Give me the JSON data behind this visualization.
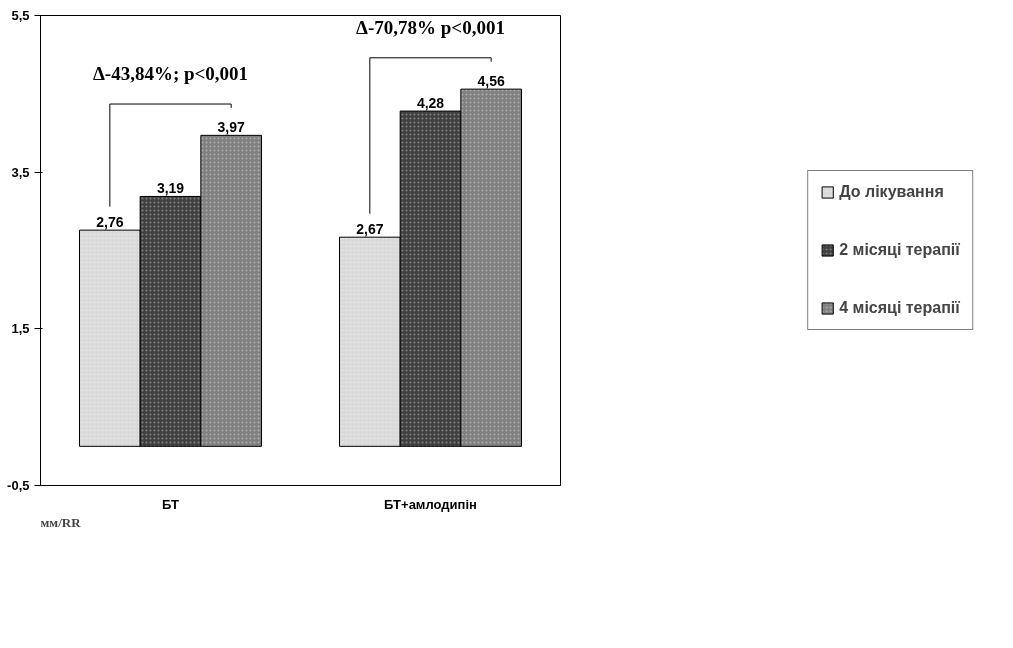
{
  "chart_data": {
    "type": "bar",
    "categories": [
      "БТ",
      "БТ+амлодипін"
    ],
    "series": [
      {
        "name": "До лікування",
        "color": "#d9d9d9",
        "values": [
          2.76,
          2.67
        ],
        "value_labels": [
          "2,76",
          "2,67"
        ]
      },
      {
        "name": "2 місяці терапії",
        "color": "#404040",
        "values": [
          3.19,
          4.28
        ],
        "value_labels": [
          "3,19",
          "4,28"
        ]
      },
      {
        "name": "4 місяці терапії",
        "color": "#808080",
        "values": [
          3.97,
          4.56
        ],
        "value_labels": [
          "3,97",
          "4,56"
        ]
      }
    ],
    "ylim": [
      -0.5,
      5.5
    ],
    "yticks": [
      {
        "value": -0.5,
        "label": "-0,5"
      },
      {
        "value": 1.5,
        "label": "1,5"
      },
      {
        "value": 3.5,
        "label": "3,5"
      },
      {
        "value": 5.5,
        "label": "5,5"
      }
    ],
    "grid": false,
    "legend": "right",
    "annotations": [
      "Δ-43,84%; p<0,001",
      "Δ-70,78% p<0,001",
      "мм/RR"
    ]
  }
}
